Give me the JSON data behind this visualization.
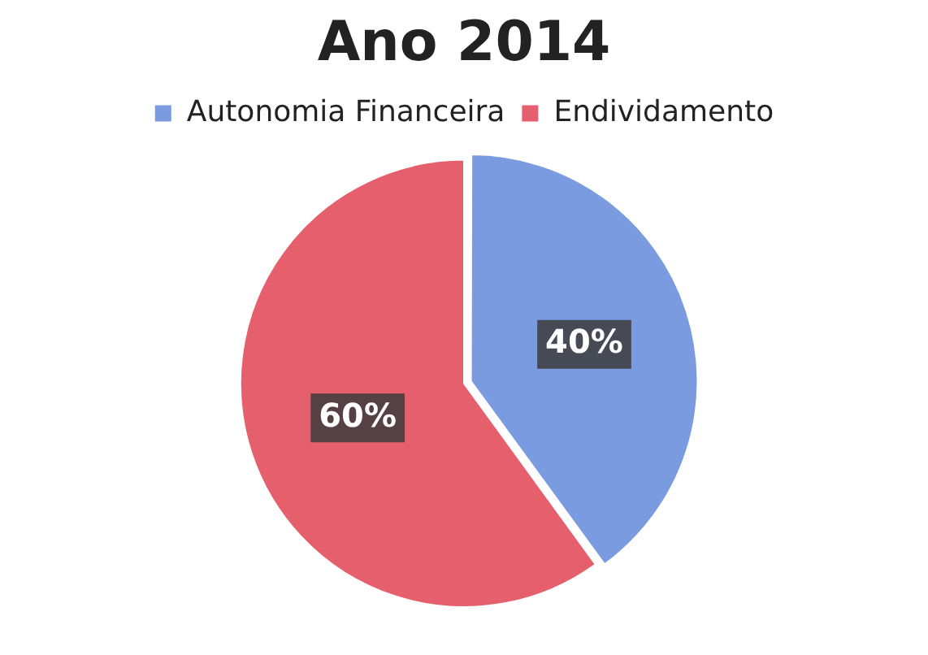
{
  "chart_data": {
    "type": "pie",
    "title": "Ano 2014",
    "categories": [
      "Autonomia Financeira",
      "Endividamento"
    ],
    "values": [
      40,
      60
    ],
    "colors": [
      "#7b9be0",
      "#e5606c"
    ],
    "value_labels": [
      "40%",
      "60%"
    ],
    "legend": "top"
  }
}
